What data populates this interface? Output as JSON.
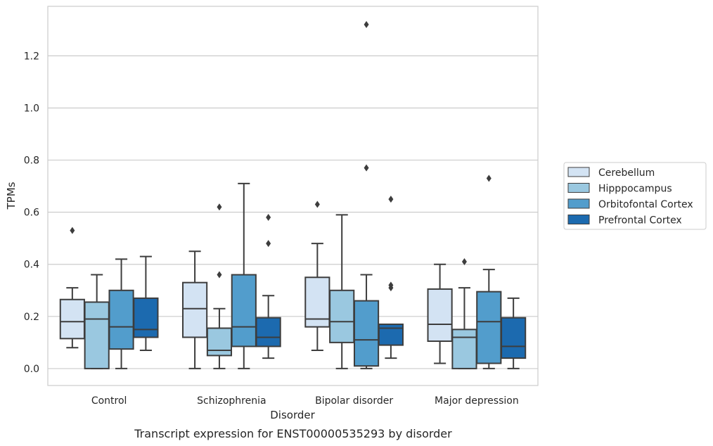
{
  "chart_data": {
    "type": "box",
    "caption": "Transcript expression for ENST00000535293 by disorder",
    "xlabel": "Disorder",
    "ylabel": "TPMs",
    "ylim": [
      -0.065,
      1.39
    ],
    "yticks": [
      "0.0",
      "0.2",
      "0.4",
      "0.6",
      "0.8",
      "1.0",
      "1.2"
    ],
    "grid": true,
    "legend_position": "right, outside plot",
    "categories": [
      "Control",
      "Schizophrenia",
      "Bipolar disorder",
      "Major depression"
    ],
    "series": [
      {
        "name": "Cerebellum",
        "color": "#d3e3f3",
        "boxes": [
          {
            "whislo": 0.08,
            "q1": 0.115,
            "med": 0.18,
            "q3": 0.265,
            "whishi": 0.31,
            "fliers": [
              0.53
            ]
          },
          {
            "whislo": 0.0,
            "q1": 0.12,
            "med": 0.23,
            "q3": 0.33,
            "whishi": 0.45,
            "fliers": []
          },
          {
            "whislo": 0.07,
            "q1": 0.16,
            "med": 0.19,
            "q3": 0.35,
            "whishi": 0.48,
            "fliers": [
              0.63
            ]
          },
          {
            "whislo": 0.02,
            "q1": 0.105,
            "med": 0.17,
            "q3": 0.305,
            "whishi": 0.4,
            "fliers": []
          }
        ]
      },
      {
        "name": "Hipppocampus",
        "color": "#9ac8e0",
        "boxes": [
          {
            "whislo": 0.0,
            "q1": 0.0,
            "med": 0.19,
            "q3": 0.255,
            "whishi": 0.36,
            "fliers": []
          },
          {
            "whislo": 0.0,
            "q1": 0.05,
            "med": 0.07,
            "q3": 0.155,
            "whishi": 0.23,
            "fliers": [
              0.36,
              0.62
            ]
          },
          {
            "whislo": 0.0,
            "q1": 0.1,
            "med": 0.18,
            "q3": 0.3,
            "whishi": 0.59,
            "fliers": []
          },
          {
            "whislo": 0.0,
            "q1": 0.0,
            "med": 0.12,
            "q3": 0.15,
            "whishi": 0.31,
            "fliers": [
              0.41
            ]
          }
        ]
      },
      {
        "name": "Orbitofontal Cortex",
        "color": "#529dcc",
        "boxes": [
          {
            "whislo": 0.0,
            "q1": 0.075,
            "med": 0.16,
            "q3": 0.3,
            "whishi": 0.42,
            "fliers": []
          },
          {
            "whislo": 0.0,
            "q1": 0.085,
            "med": 0.16,
            "q3": 0.36,
            "whishi": 0.71,
            "fliers": []
          },
          {
            "whislo": 0.0,
            "q1": 0.01,
            "med": 0.11,
            "q3": 0.26,
            "whishi": 0.36,
            "fliers": [
              0.77,
              1.32
            ]
          },
          {
            "whislo": 0.0,
            "q1": 0.02,
            "med": 0.18,
            "q3": 0.295,
            "whishi": 0.38,
            "fliers": [
              0.73
            ]
          }
        ]
      },
      {
        "name": "Prefrontal Cortex",
        "color": "#1c6aaf",
        "boxes": [
          {
            "whislo": 0.07,
            "q1": 0.12,
            "med": 0.15,
            "q3": 0.27,
            "whishi": 0.43,
            "fliers": []
          },
          {
            "whislo": 0.04,
            "q1": 0.085,
            "med": 0.12,
            "q3": 0.195,
            "whishi": 0.28,
            "fliers": [
              0.48,
              0.58
            ]
          },
          {
            "whislo": 0.04,
            "q1": 0.09,
            "med": 0.155,
            "q3": 0.17,
            "whishi": 0.17,
            "fliers": [
              0.31,
              0.32,
              0.65
            ]
          },
          {
            "whislo": 0.0,
            "q1": 0.04,
            "med": 0.085,
            "q3": 0.195,
            "whishi": 0.27,
            "fliers": []
          }
        ]
      }
    ]
  },
  "colors": {
    "grid": "#cccccc",
    "frame": "#cccccc",
    "box_edge": "#3d3d3d"
  }
}
